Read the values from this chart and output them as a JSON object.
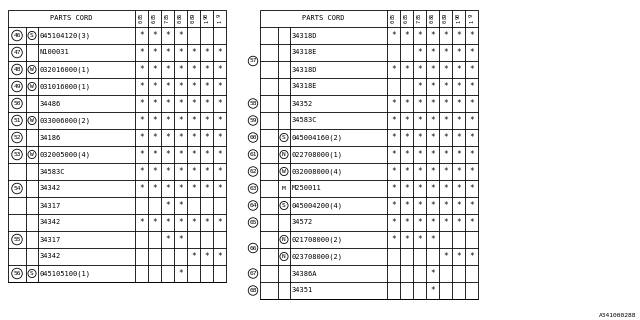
{
  "bg": "#ffffff",
  "col_headers": [
    "85\n6",
    "85\n7",
    "86\n0",
    "89\n0",
    "90\n1",
    "9\n1"
  ],
  "col_headers_full": [
    "85\n0",
    "85\n6",
    "85\n7",
    "86\n0",
    "89\n0",
    "90\n1",
    "9\n1"
  ],
  "watermark": "A341000288",
  "left_rows": [
    {
      "num": "46",
      "pre": "S",
      "pc": true,
      "code": "045104120(3)",
      "s": [
        1,
        1,
        1,
        1,
        0,
        0,
        0
      ]
    },
    {
      "num": "47",
      "pre": "",
      "pc": false,
      "code": "N100031",
      "s": [
        1,
        1,
        1,
        1,
        1,
        1,
        1
      ]
    },
    {
      "num": "48",
      "pre": "W",
      "pc": true,
      "code": "032016000(1)",
      "s": [
        1,
        1,
        1,
        1,
        1,
        1,
        1
      ]
    },
    {
      "num": "49",
      "pre": "W",
      "pc": true,
      "code": "031016000(1)",
      "s": [
        1,
        1,
        1,
        1,
        1,
        1,
        1
      ]
    },
    {
      "num": "50",
      "pre": "",
      "pc": false,
      "code": "34486",
      "s": [
        1,
        1,
        1,
        1,
        1,
        1,
        1
      ]
    },
    {
      "num": "51",
      "pre": "W",
      "pc": true,
      "code": "033006000(2)",
      "s": [
        1,
        1,
        1,
        1,
        1,
        1,
        1
      ]
    },
    {
      "num": "52",
      "pre": "",
      "pc": false,
      "code": "34186",
      "s": [
        1,
        1,
        1,
        1,
        1,
        1,
        1
      ]
    },
    {
      "num": "53",
      "pre": "W",
      "pc": true,
      "code": "032005000(4)",
      "s": [
        1,
        1,
        1,
        1,
        1,
        1,
        1
      ]
    },
    {
      "num": "54",
      "pre": "",
      "pc": false,
      "code": "34583C",
      "s": [
        1,
        1,
        1,
        1,
        1,
        1,
        1
      ]
    },
    {
      "num": "",
      "pre": "",
      "pc": false,
      "code": "34342",
      "s": [
        1,
        1,
        1,
        1,
        1,
        1,
        1
      ]
    },
    {
      "num": "",
      "pre": "",
      "pc": false,
      "code": "34317",
      "s": [
        0,
        0,
        1,
        1,
        0,
        0,
        0
      ]
    },
    {
      "num": "55",
      "pre": "",
      "pc": false,
      "code": "34342",
      "s": [
        1,
        1,
        1,
        1,
        1,
        1,
        1
      ]
    },
    {
      "num": "",
      "pre": "",
      "pc": false,
      "code": "34317",
      "s": [
        0,
        0,
        1,
        1,
        0,
        0,
        0
      ]
    },
    {
      "num": "",
      "pre": "",
      "pc": false,
      "code": "34342",
      "s": [
        0,
        0,
        0,
        0,
        1,
        1,
        1
      ]
    },
    {
      "num": "56",
      "pre": "S",
      "pc": true,
      "code": "045105100(1)",
      "s": [
        0,
        0,
        0,
        1,
        0,
        0,
        0
      ]
    }
  ],
  "right_rows": [
    {
      "grp": "57",
      "grp_span": 4,
      "pre": "",
      "pc": false,
      "code": "34318D",
      "s": [
        1,
        1,
        1,
        1,
        1,
        1,
        1
      ]
    },
    {
      "grp": "",
      "grp_span": 0,
      "pre": "",
      "pc": false,
      "code": "34318E",
      "s": [
        0,
        0,
        1,
        1,
        1,
        1,
        1
      ]
    },
    {
      "grp": "",
      "grp_span": 0,
      "pre": "",
      "pc": false,
      "code": "34318D",
      "s": [
        1,
        1,
        1,
        1,
        1,
        1,
        1
      ]
    },
    {
      "grp": "",
      "grp_span": 0,
      "pre": "",
      "pc": false,
      "code": "34318E",
      "s": [
        0,
        0,
        1,
        1,
        1,
        1,
        1
      ]
    },
    {
      "grp": "58",
      "grp_span": 1,
      "pre": "",
      "pc": false,
      "code": "34352",
      "s": [
        1,
        1,
        1,
        1,
        1,
        1,
        1
      ]
    },
    {
      "grp": "59",
      "grp_span": 1,
      "pre": "",
      "pc": false,
      "code": "34583C",
      "s": [
        1,
        1,
        1,
        1,
        1,
        1,
        1
      ]
    },
    {
      "grp": "60",
      "grp_span": 1,
      "pre": "S",
      "pc": true,
      "code": "045004160(2)",
      "s": [
        1,
        1,
        1,
        1,
        1,
        1,
        1
      ]
    },
    {
      "grp": "61",
      "grp_span": 1,
      "pre": "N",
      "pc": true,
      "code": "022708000(1)",
      "s": [
        1,
        1,
        1,
        1,
        1,
        1,
        1
      ]
    },
    {
      "grp": "62",
      "grp_span": 1,
      "pre": "W",
      "pc": true,
      "code": "032008000(4)",
      "s": [
        1,
        1,
        1,
        1,
        1,
        1,
        1
      ]
    },
    {
      "grp": "63",
      "grp_span": 1,
      "pre": "M",
      "pc": false,
      "code": "M250011",
      "s": [
        1,
        1,
        1,
        1,
        1,
        1,
        1
      ]
    },
    {
      "grp": "64",
      "grp_span": 1,
      "pre": "S",
      "pc": true,
      "code": "045004200(4)",
      "s": [
        1,
        1,
        1,
        1,
        1,
        1,
        1
      ]
    },
    {
      "grp": "65",
      "grp_span": 1,
      "pre": "",
      "pc": false,
      "code": "34572",
      "s": [
        1,
        1,
        1,
        1,
        1,
        1,
        1
      ]
    },
    {
      "grp": "66",
      "grp_span": 2,
      "pre": "N",
      "pc": true,
      "code": "021708000(2)",
      "s": [
        1,
        1,
        1,
        1,
        0,
        0,
        0
      ]
    },
    {
      "grp": "",
      "grp_span": 0,
      "pre": "N",
      "pc": true,
      "code": "023708000(2)",
      "s": [
        0,
        0,
        0,
        0,
        1,
        1,
        1
      ]
    },
    {
      "grp": "67",
      "grp_span": 1,
      "pre": "",
      "pc": false,
      "code": "34386A",
      "s": [
        0,
        0,
        0,
        1,
        0,
        0,
        0
      ]
    },
    {
      "grp": "68",
      "grp_span": 1,
      "pre": "",
      "pc": false,
      "code": "34351",
      "s": [
        0,
        0,
        0,
        1,
        0,
        0,
        0
      ]
    }
  ]
}
